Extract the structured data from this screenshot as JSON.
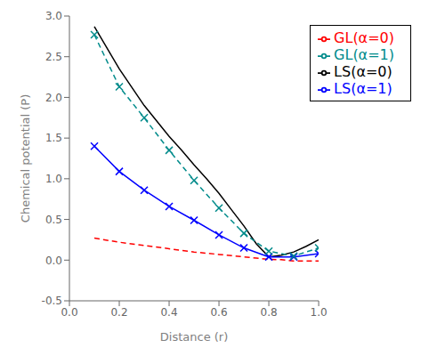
{
  "chart_data": {
    "type": "line",
    "xlabel": "Distance (r)",
    "ylabel": "Chemical potential (P)",
    "xlim": [
      0.0,
      1.0
    ],
    "ylim": [
      -0.5,
      3.0
    ],
    "xticks": [
      {
        "value": 0.0,
        "label": "0.0"
      },
      0.2,
      0.4,
      0.6,
      0.8,
      {
        "value": 1.0,
        "label": "1.0"
      }
    ],
    "yticks": [
      -0.5,
      {
        "value": 0.0,
        "label": "0.0"
      },
      0.5,
      {
        "value": 1.0,
        "label": "1.0"
      },
      1.5,
      {
        "value": 2.0,
        "label": "2.0"
      },
      2.5,
      {
        "value": 3.0,
        "label": "3.0"
      }
    ],
    "grid": false,
    "legend": "upper right",
    "series": [
      {
        "name": "LS(α=0)",
        "color": "#000000",
        "line_style": "solid",
        "x": [
          0.1,
          0.2,
          0.3,
          0.4,
          0.45,
          0.5,
          0.55,
          0.6,
          0.65,
          0.7,
          0.75,
          0.8,
          0.85,
          0.9,
          0.95,
          1.0
        ],
        "values": [
          2.87,
          2.35,
          1.9,
          1.52,
          1.35,
          1.17,
          1.0,
          0.82,
          0.62,
          0.42,
          0.2,
          0.04,
          0.06,
          0.1,
          0.17,
          0.25
        ]
      },
      {
        "name": "GL(α=0)",
        "color": "#ff0000",
        "line_style": "dashed",
        "x": [
          0.1,
          0.2,
          0.3,
          0.4,
          0.5,
          0.6,
          0.7,
          0.75,
          0.8,
          0.85,
          0.9,
          0.95,
          1.0
        ],
        "values": [
          0.27,
          0.22,
          0.18,
          0.14,
          0.1,
          0.07,
          0.04,
          0.025,
          0.01,
          0.005,
          -0.01,
          -0.01,
          -0.01
        ]
      },
      {
        "name": "LS(α=1)",
        "color": "#0000ff",
        "line_style": "solid",
        "marker": "x",
        "x": [
          0.1,
          0.2,
          0.3,
          0.4,
          0.5,
          0.6,
          0.7,
          0.8,
          0.9,
          1.0
        ],
        "values": [
          1.4,
          1.09,
          0.86,
          0.66,
          0.49,
          0.31,
          0.15,
          0.04,
          0.04,
          0.08
        ]
      },
      {
        "name": "GL(α=1)",
        "color": "#008b8b",
        "line_style": "dashed",
        "marker": "x",
        "x": [
          0.1,
          0.2,
          0.3,
          0.4,
          0.5,
          0.6,
          0.7,
          0.8,
          0.9,
          1.0
        ],
        "values": [
          2.77,
          2.13,
          1.75,
          1.35,
          0.98,
          0.64,
          0.33,
          0.11,
          0.05,
          0.15
        ]
      }
    ]
  }
}
